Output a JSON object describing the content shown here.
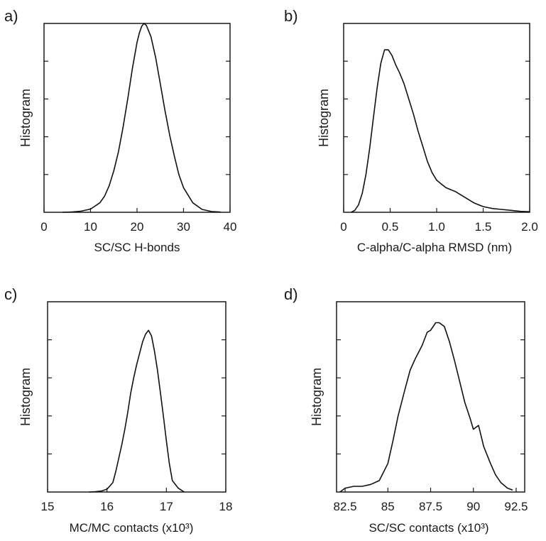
{
  "chart_data": [
    {
      "panel_label": "a)",
      "type": "line",
      "xlabel": "SC/SC H-bonds",
      "ylabel": "Histogram",
      "xlim": [
        0,
        40
      ],
      "ylim": [
        0,
        1
      ],
      "xticks": [
        0,
        10,
        20,
        30,
        40
      ],
      "xtick_labels": [
        "0",
        "10",
        "20",
        "30",
        "40"
      ],
      "yticks": [
        0.2,
        0.4,
        0.6,
        0.8
      ],
      "grid": false,
      "series": [
        {
          "x": [
            4,
            6,
            8,
            10,
            12,
            13,
            14,
            15,
            16,
            17,
            18,
            19,
            20,
            20.5,
            21,
            21.5,
            22,
            23,
            24,
            25,
            26,
            27,
            28,
            29,
            30,
            32,
            34,
            36,
            38
          ],
          "y": [
            0.0,
            0.002,
            0.006,
            0.017,
            0.05,
            0.085,
            0.14,
            0.22,
            0.32,
            0.45,
            0.6,
            0.76,
            0.9,
            0.95,
            0.985,
            1.0,
            0.99,
            0.93,
            0.82,
            0.68,
            0.54,
            0.41,
            0.3,
            0.2,
            0.13,
            0.05,
            0.015,
            0.004,
            0.001
          ]
        }
      ]
    },
    {
      "panel_label": "b)",
      "type": "line",
      "xlabel": "C-alpha/C-alpha RMSD (nm)",
      "ylabel": "Histogram",
      "xlim": [
        0,
        2.0
      ],
      "ylim": [
        0,
        1
      ],
      "xticks": [
        0,
        0.5,
        1.0,
        1.5,
        2.0
      ],
      "xtick_labels": [
        "0",
        "0.5",
        "1.0",
        "1.5",
        "2.0"
      ],
      "yticks": [
        0.2,
        0.4,
        0.6,
        0.8
      ],
      "grid": false,
      "series": [
        {
          "x": [
            0.08,
            0.12,
            0.16,
            0.2,
            0.24,
            0.28,
            0.32,
            0.36,
            0.4,
            0.44,
            0.48,
            0.52,
            0.56,
            0.6,
            0.65,
            0.7,
            0.75,
            0.8,
            0.85,
            0.9,
            0.95,
            1.0,
            1.05,
            1.1,
            1.2,
            1.3,
            1.4,
            1.5,
            1.6,
            1.7,
            1.8,
            1.9,
            2.0
          ],
          "y": [
            0.0,
            0.01,
            0.04,
            0.1,
            0.2,
            0.34,
            0.5,
            0.66,
            0.79,
            0.86,
            0.86,
            0.83,
            0.78,
            0.74,
            0.68,
            0.6,
            0.52,
            0.43,
            0.35,
            0.27,
            0.21,
            0.17,
            0.15,
            0.13,
            0.11,
            0.08,
            0.05,
            0.03,
            0.02,
            0.015,
            0.01,
            0.005,
            0.003
          ]
        }
      ]
    },
    {
      "panel_label": "c)",
      "type": "line",
      "xlabel": "MC/MC contacts (x10³)",
      "ylabel": "Histogram",
      "xlim": [
        15,
        18
      ],
      "ylim": [
        0,
        1
      ],
      "xticks": [
        15,
        16,
        17,
        18
      ],
      "xtick_labels": [
        "15",
        "16",
        "17",
        "18"
      ],
      "yticks": [
        0.2,
        0.4,
        0.6,
        0.8
      ],
      "grid": false,
      "series": [
        {
          "x": [
            15.7,
            15.8,
            15.9,
            16.0,
            16.1,
            16.15,
            16.2,
            16.25,
            16.3,
            16.35,
            16.4,
            16.45,
            16.5,
            16.55,
            16.6,
            16.65,
            16.7,
            16.75,
            16.8,
            16.85,
            16.9,
            16.95,
            17.0,
            17.05,
            17.1,
            17.2,
            17.3
          ],
          "y": [
            0.0,
            0.002,
            0.005,
            0.015,
            0.05,
            0.11,
            0.18,
            0.25,
            0.33,
            0.42,
            0.52,
            0.6,
            0.67,
            0.73,
            0.79,
            0.83,
            0.85,
            0.82,
            0.74,
            0.64,
            0.52,
            0.4,
            0.27,
            0.15,
            0.06,
            0.02,
            0.0
          ]
        }
      ]
    },
    {
      "panel_label": "d)",
      "type": "line",
      "xlabel": "SC/SC contacts (x10³)",
      "ylabel": "Histogram",
      "xlim": [
        82.0,
        93.0
      ],
      "ylim": [
        0,
        1
      ],
      "xticks": [
        82.5,
        85,
        87.5,
        90,
        92.5
      ],
      "xtick_labels": [
        "82.5",
        "85",
        "87.5",
        "90",
        "92.5"
      ],
      "yticks": [
        0.2,
        0.4,
        0.6,
        0.8
      ],
      "grid": false,
      "series": [
        {
          "x": [
            82.2,
            82.5,
            83.0,
            83.5,
            84.0,
            84.5,
            85.0,
            85.3,
            85.6,
            86.0,
            86.3,
            86.6,
            87.0,
            87.3,
            87.5,
            87.8,
            88.0,
            88.3,
            88.6,
            88.9,
            89.2,
            89.5,
            89.8,
            90.0,
            90.3,
            90.6,
            91.0,
            91.3,
            91.6,
            92.0,
            92.3
          ],
          "y": [
            0.0,
            0.02,
            0.03,
            0.03,
            0.04,
            0.06,
            0.15,
            0.27,
            0.4,
            0.54,
            0.64,
            0.7,
            0.77,
            0.84,
            0.85,
            0.89,
            0.89,
            0.87,
            0.79,
            0.69,
            0.58,
            0.47,
            0.39,
            0.33,
            0.35,
            0.24,
            0.15,
            0.09,
            0.05,
            0.02,
            0.01
          ]
        }
      ]
    }
  ]
}
